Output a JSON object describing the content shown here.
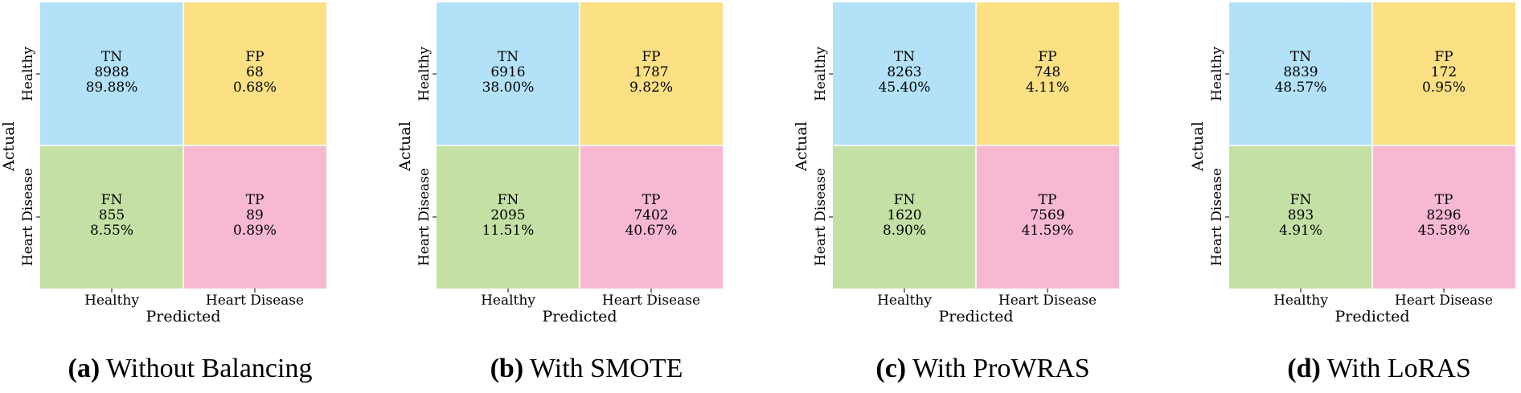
{
  "colors": {
    "TN": "#b3e2f8",
    "FP": "#fbe084",
    "FN": "#c5e0a5",
    "TP": "#f7b9d2"
  },
  "chart_data": [
    {
      "type": "heatmap",
      "caption_letter": "(a)",
      "caption_text": "Without Balancing",
      "xlabel": "Predicted",
      "ylabel": "Actual",
      "x_ticks": [
        "Healthy",
        "Heart Disease"
      ],
      "y_ticks": [
        "Healthy",
        "Heart Disease"
      ],
      "cells": [
        {
          "label": "TN",
          "count": "8988",
          "pct": "89.88%"
        },
        {
          "label": "FP",
          "count": "68",
          "pct": "0.68%"
        },
        {
          "label": "FN",
          "count": "855",
          "pct": "8.55%"
        },
        {
          "label": "TP",
          "count": "89",
          "pct": "0.89%"
        }
      ]
    },
    {
      "type": "heatmap",
      "caption_letter": "(b)",
      "caption_text": "With SMOTE",
      "xlabel": "Predicted",
      "ylabel": "Actual",
      "x_ticks": [
        "Healthy",
        "Heart Disease"
      ],
      "y_ticks": [
        "Healthy",
        "Heart Disease"
      ],
      "cells": [
        {
          "label": "TN",
          "count": "6916",
          "pct": "38.00%"
        },
        {
          "label": "FP",
          "count": "1787",
          "pct": "9.82%"
        },
        {
          "label": "FN",
          "count": "2095",
          "pct": "11.51%"
        },
        {
          "label": "TP",
          "count": "7402",
          "pct": "40.67%"
        }
      ]
    },
    {
      "type": "heatmap",
      "caption_letter": "(c)",
      "caption_text": "With ProWRAS",
      "xlabel": "Predicted",
      "ylabel": "Actual",
      "x_ticks": [
        "Healthy",
        "Heart Disease"
      ],
      "y_ticks": [
        "Healthy",
        "Heart Disease"
      ],
      "cells": [
        {
          "label": "TN",
          "count": "8263",
          "pct": "45.40%"
        },
        {
          "label": "FP",
          "count": "748",
          "pct": "4.11%"
        },
        {
          "label": "FN",
          "count": "1620",
          "pct": "8.90%"
        },
        {
          "label": "TP",
          "count": "7569",
          "pct": "41.59%"
        }
      ]
    },
    {
      "type": "heatmap",
      "caption_letter": "(d)",
      "caption_text": "With LoRAS",
      "xlabel": "Predicted",
      "ylabel": "Actual",
      "x_ticks": [
        "Healthy",
        "Heart Disease"
      ],
      "y_ticks": [
        "Healthy",
        "Heart Disease"
      ],
      "cells": [
        {
          "label": "TN",
          "count": "8839",
          "pct": "48.57%"
        },
        {
          "label": "FP",
          "count": "172",
          "pct": "0.95%"
        },
        {
          "label": "FN",
          "count": "893",
          "pct": "4.91%"
        },
        {
          "label": "TP",
          "count": "8296",
          "pct": "45.58%"
        }
      ]
    }
  ]
}
